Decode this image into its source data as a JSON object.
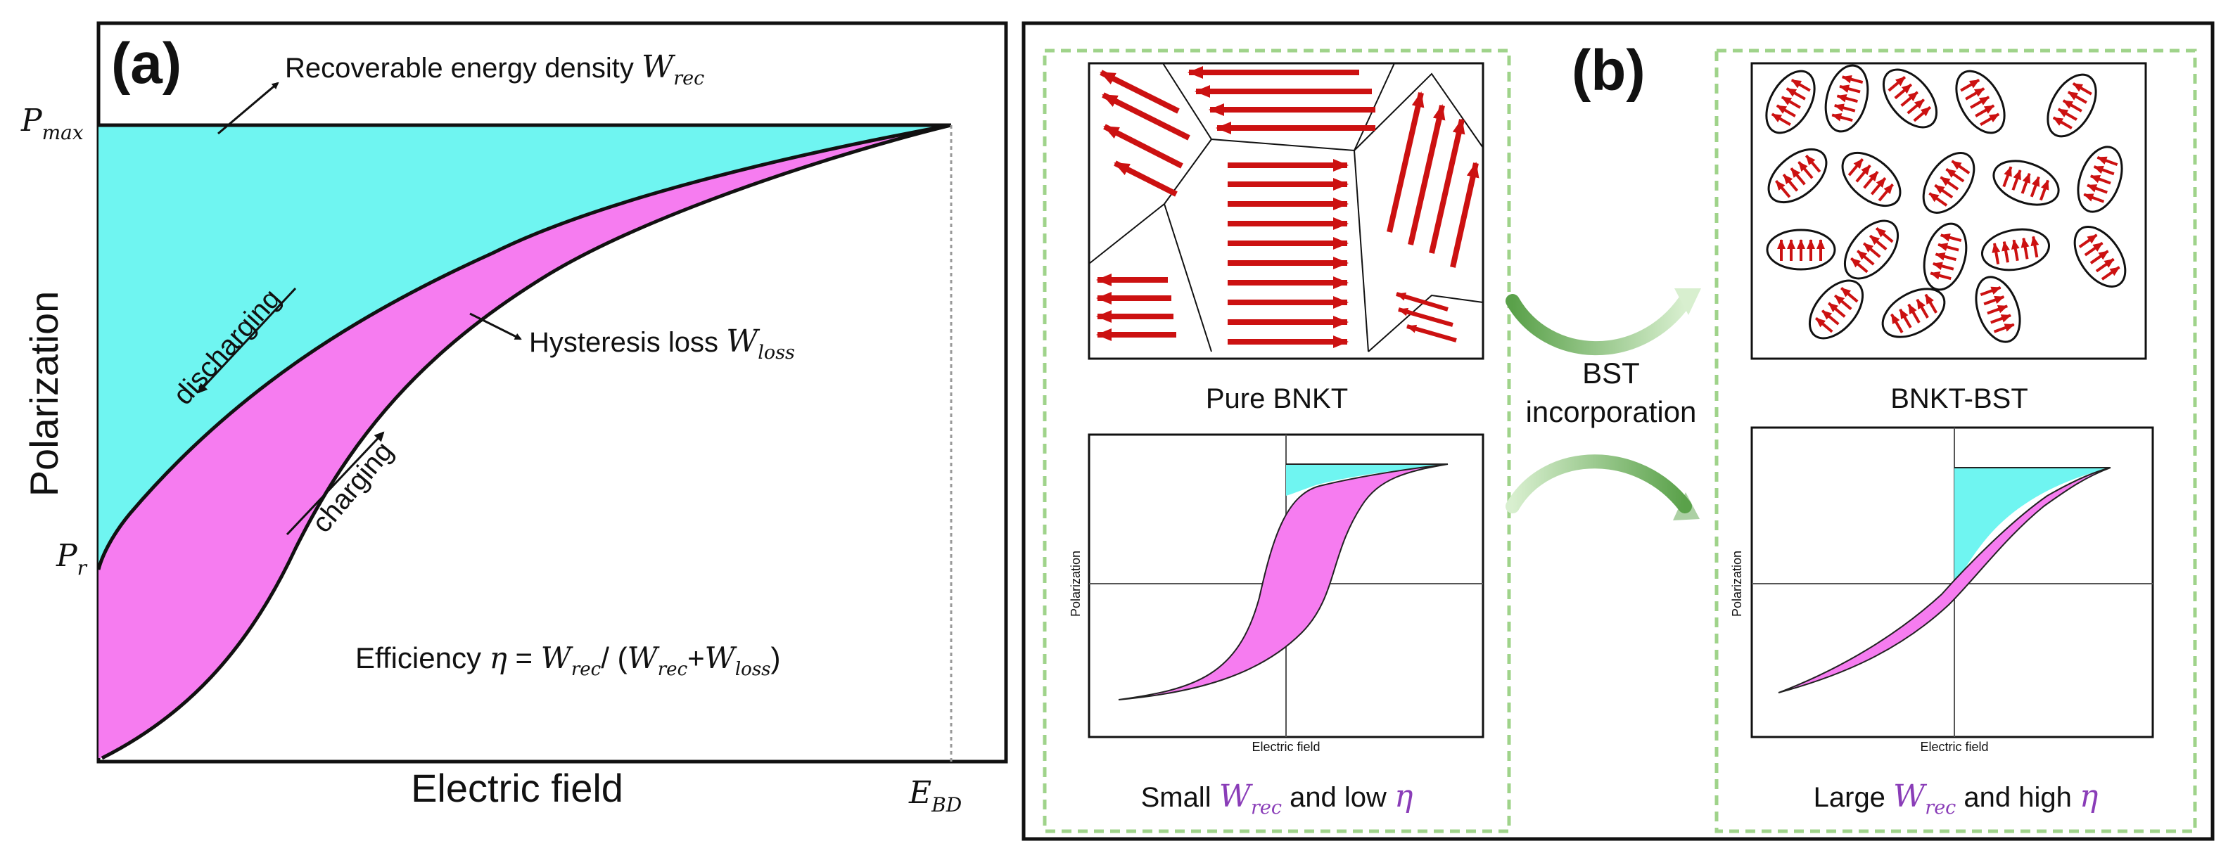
{
  "panel_a": {
    "label": "(a)",
    "y_axis_label": "Polarization",
    "x_axis_label": "Electric field",
    "pmax_main": "P",
    "pmax_sub": "max",
    "pr_main": "P",
    "pr_sub": "r",
    "ebd_main": "E",
    "ebd_sub": "BD",
    "wrec_text": "Recoverable energy density ",
    "wrec_main": "W",
    "wrec_sub": "rec",
    "wloss_text": "Hysteresis loss ",
    "wloss_main": "W",
    "wloss_sub": "loss",
    "discharging_label": "discharging",
    "charging_label": "charging",
    "efficiency_prefix": "Efficiency ",
    "eta": "η",
    "efficiency_eq": " = ",
    "eff_w1": "W",
    "eff_w1_sub": "rec",
    "eff_slash": "/ (",
    "eff_w2": "W",
    "eff_w2_sub": "rec",
    "eff_plus": "+",
    "eff_w3": "W",
    "eff_w3_sub": "loss",
    "eff_close": ")"
  },
  "panel_b": {
    "label": "(b)",
    "left_title": "Pure BNKT",
    "right_title": "BNKT-BST",
    "transition_line1": "BST",
    "transition_line2": "incorporation",
    "inset_y_label": "Polarization",
    "inset_x_label": "Electric field",
    "left_caption_pre": "Small ",
    "left_caption_post": " and low ",
    "right_caption_pre": "Large ",
    "right_caption_post": " and high ",
    "w_main": "W",
    "w_sub": "rec",
    "eta": "η"
  },
  "colors": {
    "cyan": "#6ff5f1",
    "magenta": "#f67cf0",
    "arrow_red": "#cc1111",
    "dashed_green": "#9fd38a",
    "purple_text": "#8a3db8",
    "curved_arrow_green": "#7cc06a"
  }
}
